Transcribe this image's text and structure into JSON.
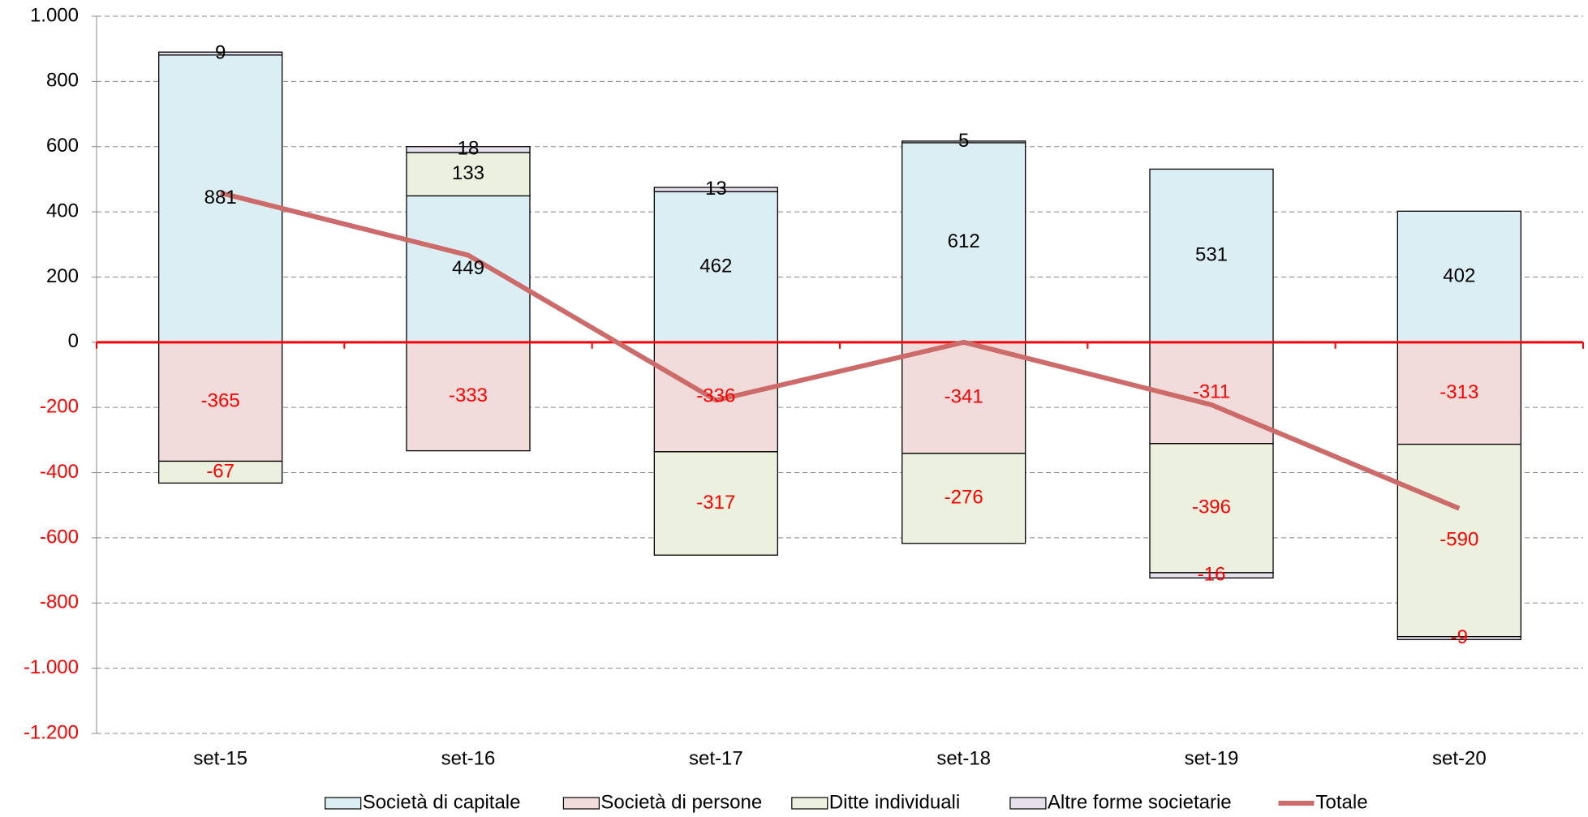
{
  "chart_data": {
    "type": "bar",
    "stacked": true,
    "categories": [
      "set-15",
      "set-16",
      "set-17",
      "set-18",
      "set-19",
      "set-20"
    ],
    "series": [
      {
        "name": "Società di capitale",
        "color": "#daeef3",
        "values": [
          881,
          449,
          462,
          612,
          531,
          402
        ]
      },
      {
        "name": "Società di persone",
        "color": "#f2dcdb",
        "values": [
          -365,
          -333,
          -336,
          -341,
          -311,
          -313
        ]
      },
      {
        "name": "Ditte individuali",
        "color": "#ebf1de",
        "values": [
          -67,
          133,
          -317,
          -276,
          -396,
          -590
        ]
      },
      {
        "name": "Altre forme societarie",
        "color": "#e6e0ec",
        "values": [
          9,
          18,
          13,
          5,
          -16,
          -9
        ]
      },
      {
        "name": "Totale",
        "type": "line",
        "color": "#cd6b6b",
        "values": [
          458,
          267,
          -178,
          0,
          -192,
          -510
        ]
      }
    ],
    "ylim": [
      -1200,
      1000
    ],
    "yticks": [
      {
        "value": -1200,
        "label": "-1.200"
      },
      {
        "value": -1000,
        "label": "-1.000"
      },
      -800,
      -600,
      -400,
      -200,
      0,
      200,
      400,
      600,
      800,
      {
        "value": 1000,
        "label": "1.000"
      }
    ],
    "grid": true,
    "legend": "bottom",
    "zero_line_color": "#ff0000",
    "positive_label_color": "#000000",
    "negative_label_color": "#ff0000"
  }
}
